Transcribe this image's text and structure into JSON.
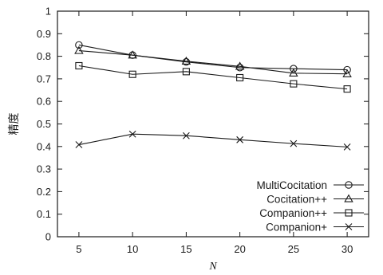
{
  "chart_data": {
    "type": "line",
    "title": "",
    "xlabel": "N",
    "ylabel": "精度",
    "x": [
      5,
      10,
      15,
      20,
      25,
      30
    ],
    "xlim": [
      3,
      32
    ],
    "ylim": [
      0,
      1
    ],
    "xticks": [
      "5",
      "10",
      "15",
      "20",
      "25",
      "30"
    ],
    "yticks": [
      "0",
      "0.1",
      "0.2",
      "0.3",
      "0.4",
      "0.5",
      "0.6",
      "0.7",
      "0.8",
      "0.9",
      "1"
    ],
    "grid": false,
    "legend_position": "bottom-right",
    "series": [
      {
        "name": "MultiCocitation",
        "marker": "circle",
        "values": [
          0.85,
          0.805,
          0.775,
          0.75,
          0.745,
          0.74
        ]
      },
      {
        "name": "Cocitation++",
        "marker": "triangle",
        "values": [
          0.825,
          0.805,
          0.778,
          0.755,
          0.725,
          0.722
        ]
      },
      {
        "name": "Companion++",
        "marker": "square",
        "values": [
          0.758,
          0.72,
          0.732,
          0.705,
          0.678,
          0.655
        ]
      },
      {
        "name": "Companion+",
        "marker": "cross",
        "values": [
          0.408,
          0.455,
          0.448,
          0.43,
          0.413,
          0.398
        ]
      }
    ]
  }
}
